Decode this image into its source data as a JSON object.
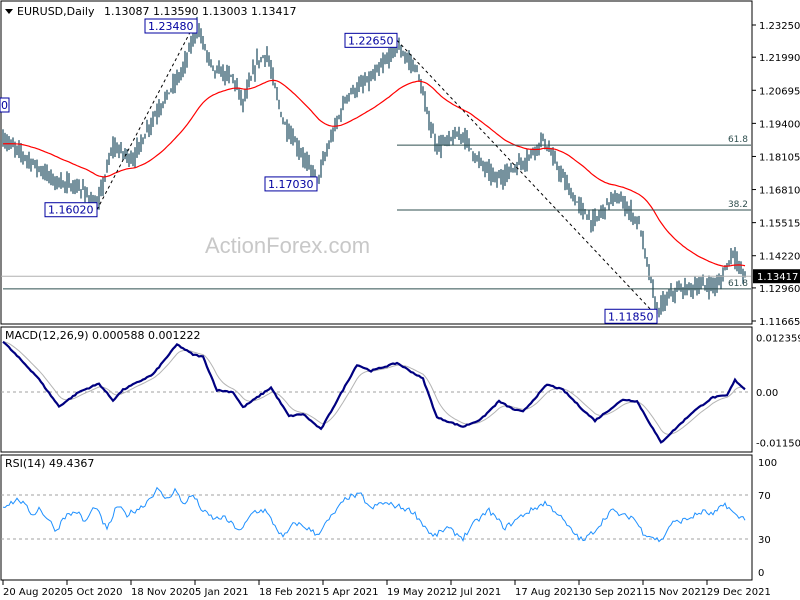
{
  "chart_data": {
    "type": "line",
    "title": "EURUSD,Daily",
    "ohlc_readout": "1.13087 1.13590 1.13003 1.13417",
    "current_price": "1.13417",
    "current_price_value": 1.13417,
    "watermark": "ActionForex.com",
    "left_edge_label": "0",
    "price_axis": {
      "ylim": [
        1.11665,
        1.2325
      ],
      "ticks": [
        "1.23250",
        "1.21990",
        "1.20695",
        "1.19400",
        "1.18105",
        "1.16810",
        "1.15515",
        "1.14220",
        "1.12960",
        "1.11665"
      ]
    },
    "x_tick_labels": [
      "20 Aug 2020",
      "5 Oct 2020",
      "18 Nov 2020",
      "5 Jan 2021",
      "18 Feb 2021",
      "5 Apr 2021",
      "19 May 2021",
      "2 Jul 2021",
      "17 Aug 2021",
      "30 Sep 2021",
      "15 Nov 2021",
      "29 Dec 2021"
    ],
    "bar_count": 372,
    "bars_per_x_tick": 32,
    "price_pivots": [
      [
        0,
        1.188
      ],
      [
        8,
        1.183
      ],
      [
        25,
        1.172
      ],
      [
        40,
        1.168
      ],
      [
        47,
        1.1612
      ],
      [
        55,
        1.185
      ],
      [
        65,
        1.18
      ],
      [
        75,
        1.196
      ],
      [
        90,
        1.215
      ],
      [
        97,
        1.232
      ],
      [
        105,
        1.215
      ],
      [
        115,
        1.212
      ],
      [
        120,
        1.202
      ],
      [
        127,
        1.218
      ],
      [
        132,
        1.221
      ],
      [
        140,
        1.195
      ],
      [
        157,
        1.1715
      ],
      [
        165,
        1.19
      ],
      [
        172,
        1.205
      ],
      [
        185,
        1.212
      ],
      [
        197,
        1.224
      ],
      [
        207,
        1.215
      ],
      [
        213,
        1.195
      ],
      [
        217,
        1.185
      ],
      [
        230,
        1.19
      ],
      [
        237,
        1.18
      ],
      [
        247,
        1.172
      ],
      [
        262,
        1.18
      ],
      [
        270,
        1.188
      ],
      [
        285,
        1.165
      ],
      [
        295,
        1.155
      ],
      [
        305,
        1.165
      ],
      [
        310,
        1.163
      ],
      [
        318,
        1.155
      ],
      [
        327,
        1.1205
      ],
      [
        335,
        1.128
      ],
      [
        345,
        1.13
      ],
      [
        358,
        1.131
      ],
      [
        365,
        1.144
      ],
      [
        369,
        1.136
      ],
      [
        371,
        1.13417
      ]
    ],
    "moving_average_period": 55,
    "pivot_labels": [
      {
        "text": "1.23480",
        "bar": 97,
        "price": 1.2348
      },
      {
        "text": "1.22650",
        "bar": 197,
        "price": 1.2265
      },
      {
        "text": "1.17030",
        "bar": 157,
        "price": 1.1703
      },
      {
        "text": "1.16020",
        "bar": 47,
        "price": 1.1602
      },
      {
        "text": "1.11850",
        "bar": 327,
        "price": 1.1185
      }
    ],
    "fib_levels": [
      {
        "label": "61.8",
        "price": 1.1855,
        "from_bar": 197
      },
      {
        "label": "38.2",
        "price": 1.1601,
        "from_bar": 197
      },
      {
        "label": "61.8",
        "price": 1.1292,
        "from_bar": 0
      }
    ],
    "trendlines": [
      [
        47,
        1.1602,
        97,
        1.2348
      ],
      [
        197,
        1.2265,
        327,
        1.1185
      ]
    ],
    "macd": {
      "label": "MACD(12,26,9) 0.000588 0.001222",
      "ticks": [
        "0.012359",
        "0.00",
        "-0.011502"
      ],
      "ylim": [
        -0.011502,
        0.012359
      ],
      "pivots": [
        [
          0,
          0.0115
        ],
        [
          17,
          0.0035
        ],
        [
          28,
          -0.0033
        ],
        [
          38,
          0
        ],
        [
          48,
          0.0019
        ],
        [
          55,
          -0.0019
        ],
        [
          60,
          0.0005
        ],
        [
          75,
          0.004
        ],
        [
          87,
          0.0108
        ],
        [
          95,
          0.0085
        ],
        [
          100,
          0.008
        ],
        [
          107,
          0.0004
        ],
        [
          115,
          0
        ],
        [
          120,
          -0.0035
        ],
        [
          134,
          0.001
        ],
        [
          143,
          -0.0055
        ],
        [
          150,
          -0.005
        ],
        [
          159,
          -0.0085
        ],
        [
          177,
          0.0062
        ],
        [
          184,
          0.0048
        ],
        [
          197,
          0.0066
        ],
        [
          210,
          0.003
        ],
        [
          217,
          -0.0058
        ],
        [
          230,
          -0.0079
        ],
        [
          239,
          -0.0062
        ],
        [
          248,
          -0.0021
        ],
        [
          255,
          -0.0039
        ],
        [
          260,
          -0.0045
        ],
        [
          272,
          0.0017
        ],
        [
          280,
          0.0005
        ],
        [
          291,
          -0.0045
        ],
        [
          296,
          -0.0065
        ],
        [
          310,
          -0.0017
        ],
        [
          317,
          -0.0021
        ],
        [
          329,
          -0.0115
        ],
        [
          345,
          -0.0045
        ],
        [
          355,
          -0.0012
        ],
        [
          362,
          -0.0008
        ],
        [
          366,
          0.0027
        ],
        [
          371,
          0.0006
        ]
      ]
    },
    "rsi": {
      "label": "RSI(14) 49.4367",
      "ticks": [
        "100",
        "70",
        "30",
        "0"
      ],
      "levels": [
        70,
        30
      ],
      "pivots": [
        [
          0,
          60
        ],
        [
          8,
          66
        ],
        [
          15,
          52
        ],
        [
          18,
          58
        ],
        [
          23,
          47
        ],
        [
          27,
          37
        ],
        [
          30,
          50
        ],
        [
          37,
          55
        ],
        [
          41,
          45
        ],
        [
          46,
          60
        ],
        [
          52,
          38
        ],
        [
          57,
          60
        ],
        [
          62,
          52
        ],
        [
          70,
          60
        ],
        [
          77,
          75
        ],
        [
          82,
          66
        ],
        [
          86,
          75
        ],
        [
          90,
          62
        ],
        [
          95,
          70
        ],
        [
          100,
          55
        ],
        [
          106,
          48
        ],
        [
          110,
          50
        ],
        [
          119,
          37
        ],
        [
          125,
          55
        ],
        [
          131,
          56
        ],
        [
          140,
          31
        ],
        [
          146,
          45
        ],
        [
          152,
          40
        ],
        [
          157,
          34
        ],
        [
          165,
          52
        ],
        [
          172,
          68
        ],
        [
          179,
          70
        ],
        [
          184,
          57
        ],
        [
          189,
          63
        ],
        [
          197,
          60
        ],
        [
          205,
          55
        ],
        [
          215,
          32
        ],
        [
          222,
          40
        ],
        [
          230,
          31
        ],
        [
          236,
          45
        ],
        [
          243,
          56
        ],
        [
          251,
          40
        ],
        [
          260,
          52
        ],
        [
          271,
          63
        ],
        [
          277,
          54
        ],
        [
          284,
          38
        ],
        [
          290,
          28
        ],
        [
          297,
          40
        ],
        [
          304,
          56
        ],
        [
          310,
          51
        ],
        [
          315,
          50
        ],
        [
          320,
          36
        ],
        [
          329,
          28
        ],
        [
          334,
          44
        ],
        [
          342,
          48
        ],
        [
          350,
          55
        ],
        [
          355,
          52
        ],
        [
          361,
          62
        ],
        [
          367,
          50
        ],
        [
          371,
          49.4
        ]
      ]
    },
    "colors": {
      "bars": "#1b4a5e",
      "ma": "#ff0000",
      "macd": "#000080",
      "signal": "#b4b4b4",
      "rsi": "#1e90ff",
      "fib": "#2f4f4f",
      "pivot_box": "#0000a0"
    }
  }
}
